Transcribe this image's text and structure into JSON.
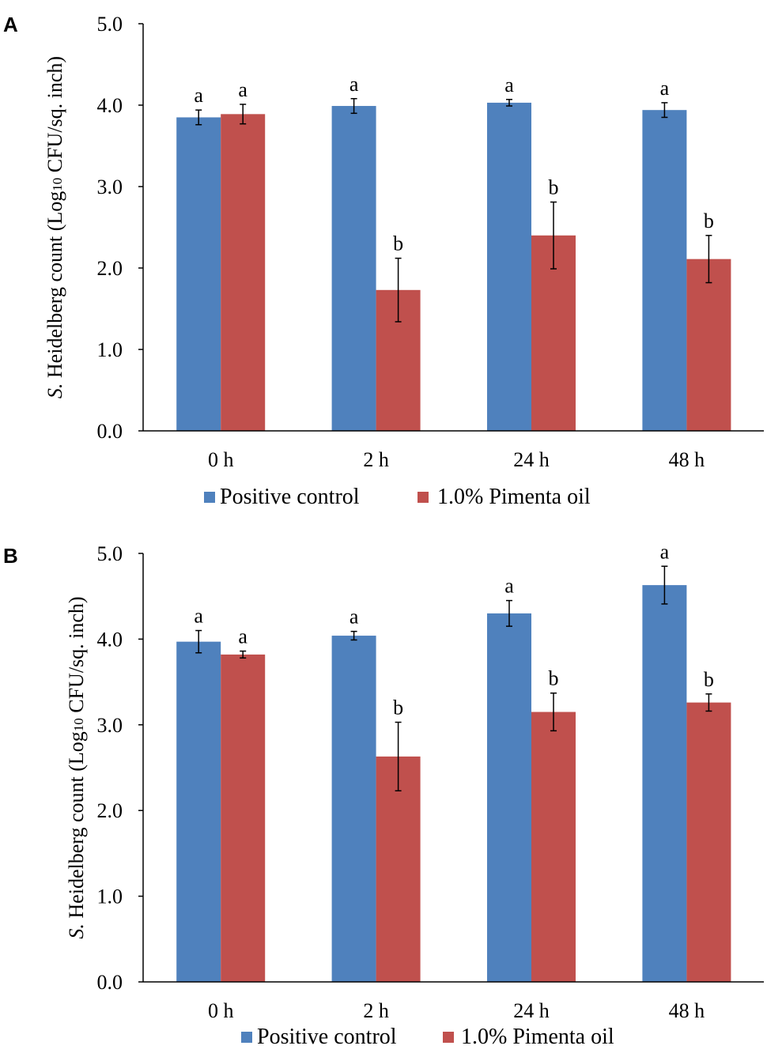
{
  "chart_data": [
    {
      "type": "bar",
      "panel_label": "A",
      "ylabel": {
        "italic": "S.",
        "pre": " Heidelberg count (Log",
        "sub": "10",
        "post": " CFU/sq. inch)"
      },
      "ylim": [
        0,
        5
      ],
      "yticks": [
        "0.0",
        "1.0",
        "2.0",
        "3.0",
        "4.0",
        "5.0"
      ],
      "categories": [
        "0 h",
        "2 h",
        "24 h",
        "48 h"
      ],
      "series": [
        {
          "name": "Positive control",
          "color": "#4f81bd",
          "values": [
            3.85,
            3.99,
            4.03,
            3.94
          ],
          "errors": [
            0.09,
            0.09,
            0.04,
            0.09
          ],
          "letters": [
            "a",
            "a",
            "a",
            "a"
          ]
        },
        {
          "name": "1.0% Pimenta oil",
          "color": "#c0504d",
          "values": [
            3.89,
            1.73,
            2.4,
            2.11
          ],
          "errors": [
            0.12,
            0.39,
            0.41,
            0.29
          ],
          "letters": [
            "a",
            "b",
            "b",
            "b"
          ]
        }
      ],
      "legend": [
        "Positive control",
        "1.0% Pimenta oil"
      ]
    },
    {
      "type": "bar",
      "panel_label": "B",
      "ylabel": {
        "italic": "S.",
        "pre": " Heidelberg count (Log",
        "sub": "10",
        "post": " CFU/sq. inch)"
      },
      "ylim": [
        0,
        5
      ],
      "yticks": [
        "0.0",
        "1.0",
        "2.0",
        "3.0",
        "4.0",
        "5.0"
      ],
      "categories": [
        "0 h",
        "2 h",
        "24 h",
        "48 h"
      ],
      "series": [
        {
          "name": "Positive control",
          "color": "#4f81bd",
          "values": [
            3.97,
            4.04,
            4.3,
            4.63
          ],
          "errors": [
            0.13,
            0.05,
            0.15,
            0.22
          ],
          "letters": [
            "a",
            "a",
            "a",
            "a"
          ]
        },
        {
          "name": "1.0% Pimenta oil",
          "color": "#c0504d",
          "values": [
            3.82,
            2.63,
            3.15,
            3.26
          ],
          "errors": [
            0.04,
            0.4,
            0.22,
            0.1
          ],
          "letters": [
            "a",
            "b",
            "b",
            "b"
          ]
        }
      ],
      "legend": [
        "Positive control",
        "1.0% Pimenta oil"
      ]
    }
  ]
}
